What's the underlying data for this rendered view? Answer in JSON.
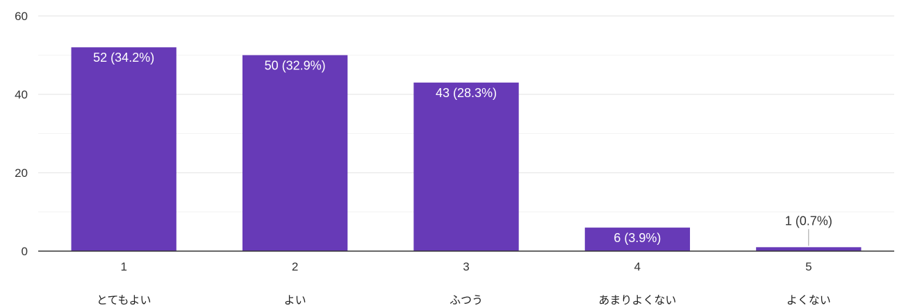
{
  "chart_data": {
    "type": "bar",
    "title": "",
    "xlabel": "",
    "ylabel": "",
    "ylim": [
      0,
      60
    ],
    "y_ticks": [
      0,
      20,
      40,
      60
    ],
    "grid": true,
    "categories": [
      "1",
      "2",
      "3",
      "4",
      "5"
    ],
    "category_descriptions": [
      "とてもよい",
      "よい",
      "ふつう",
      "あまりよくない",
      "よくない"
    ],
    "values": [
      52,
      50,
      43,
      6,
      1
    ],
    "data_labels": [
      "52 (34.2%)",
      "50 (32.9%)",
      "43 (28.3%)",
      "6 (3.9%)",
      "1 (0.7%)"
    ],
    "colors": {
      "bar": "#673ab7",
      "grid_major": "#e0e0e0",
      "grid_minor": "#f3f3f3",
      "axis": "#333333"
    }
  }
}
